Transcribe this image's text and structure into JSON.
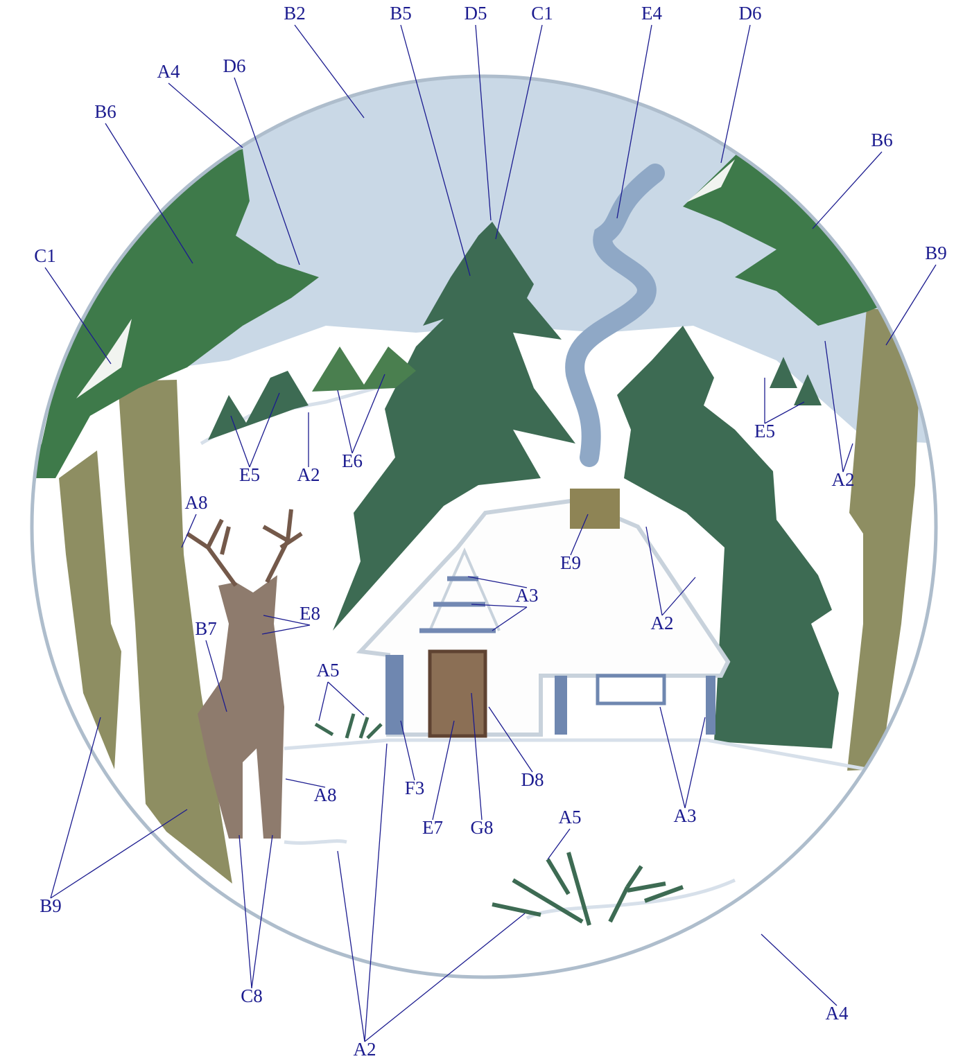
{
  "labels": [
    "B2",
    "B5",
    "D5",
    "C1",
    "E4",
    "D6",
    "A4",
    "D6",
    "B6",
    "B6",
    "B9",
    "C1",
    "E5",
    "A2",
    "E5",
    "A2",
    "E6",
    "A8",
    "E9",
    "A2",
    "A3",
    "E8",
    "B7",
    "A5",
    "A8",
    "F3",
    "D8",
    "E7",
    "G8",
    "A3",
    "A5",
    "B9",
    "C8",
    "A4",
    "A2"
  ]
}
